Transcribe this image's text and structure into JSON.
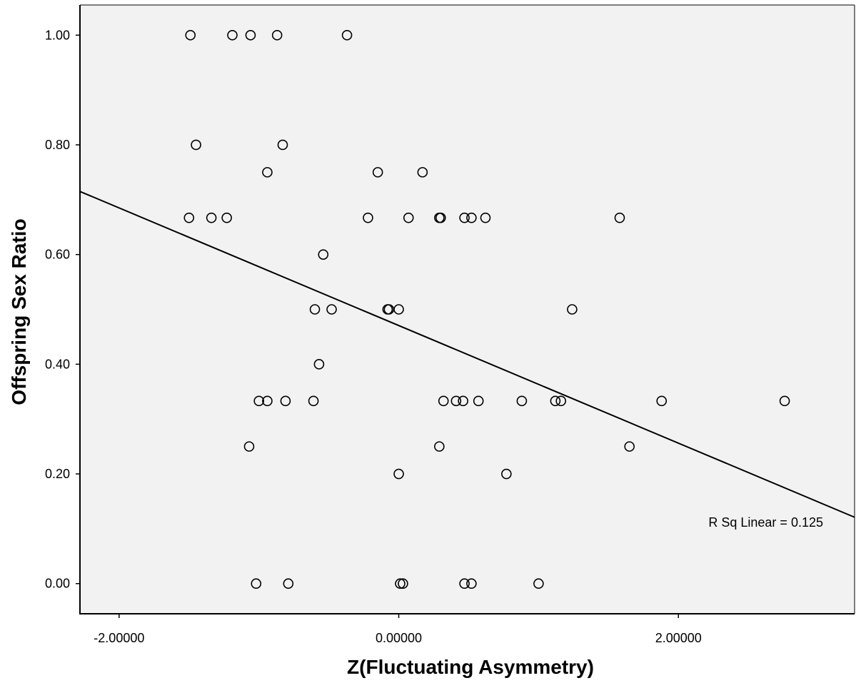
{
  "chart_data": {
    "type": "scatter",
    "title": "",
    "xlabel": "Z(Fluctuating Asymmetry)",
    "ylabel": "Offspring Sex Ratio",
    "xlim": [
      -2.28,
      3.26
    ],
    "ylim": [
      -0.055,
      1.055
    ],
    "x_ticks": [
      -2.0,
      0.0,
      2.0
    ],
    "x_tick_labels": [
      "-2.00000",
      "0.00000",
      "2.00000"
    ],
    "y_ticks": [
      0.0,
      0.2,
      0.4,
      0.6,
      0.8,
      1.0
    ],
    "y_tick_labels": [
      "0.00",
      "0.20",
      "0.40",
      "0.60",
      "0.80",
      "1.00"
    ],
    "grid": false,
    "background": "#f2f2f2",
    "marker": "open-circle",
    "points": [
      {
        "x": -1.49,
        "y": 1.0
      },
      {
        "x": -1.19,
        "y": 1.0
      },
      {
        "x": -1.06,
        "y": 1.0
      },
      {
        "x": -0.87,
        "y": 1.0
      },
      {
        "x": -0.37,
        "y": 1.0
      },
      {
        "x": -1.45,
        "y": 0.8
      },
      {
        "x": -0.83,
        "y": 0.8
      },
      {
        "x": -0.94,
        "y": 0.75
      },
      {
        "x": -0.15,
        "y": 0.75
      },
      {
        "x": 0.17,
        "y": 0.75
      },
      {
        "x": -1.5,
        "y": 0.667
      },
      {
        "x": -1.34,
        "y": 0.667
      },
      {
        "x": -1.23,
        "y": 0.667
      },
      {
        "x": -0.22,
        "y": 0.667
      },
      {
        "x": 0.07,
        "y": 0.667
      },
      {
        "x": 0.29,
        "y": 0.667
      },
      {
        "x": 0.3,
        "y": 0.667
      },
      {
        "x": 0.47,
        "y": 0.667
      },
      {
        "x": 0.52,
        "y": 0.667
      },
      {
        "x": 0.62,
        "y": 0.667
      },
      {
        "x": 1.58,
        "y": 0.667
      },
      {
        "x": -0.54,
        "y": 0.6
      },
      {
        "x": -0.6,
        "y": 0.5
      },
      {
        "x": -0.48,
        "y": 0.5
      },
      {
        "x": -0.08,
        "y": 0.5
      },
      {
        "x": -0.07,
        "y": 0.5
      },
      {
        "x": 0.0,
        "y": 0.5
      },
      {
        "x": 1.24,
        "y": 0.5
      },
      {
        "x": -0.57,
        "y": 0.4
      },
      {
        "x": -1.0,
        "y": 0.333
      },
      {
        "x": -0.94,
        "y": 0.333
      },
      {
        "x": -0.81,
        "y": 0.333
      },
      {
        "x": -0.61,
        "y": 0.333
      },
      {
        "x": 0.32,
        "y": 0.333
      },
      {
        "x": 0.41,
        "y": 0.333
      },
      {
        "x": 0.46,
        "y": 0.333
      },
      {
        "x": 0.57,
        "y": 0.333
      },
      {
        "x": 0.88,
        "y": 0.333
      },
      {
        "x": 1.12,
        "y": 0.333
      },
      {
        "x": 1.16,
        "y": 0.333
      },
      {
        "x": 1.88,
        "y": 0.333
      },
      {
        "x": 2.76,
        "y": 0.333
      },
      {
        "x": -1.07,
        "y": 0.25
      },
      {
        "x": 0.29,
        "y": 0.25
      },
      {
        "x": 1.65,
        "y": 0.25
      },
      {
        "x": 0.0,
        "y": 0.2
      },
      {
        "x": 0.77,
        "y": 0.2
      },
      {
        "x": -1.02,
        "y": 0.0
      },
      {
        "x": -0.79,
        "y": 0.0
      },
      {
        "x": 0.01,
        "y": 0.0
      },
      {
        "x": 0.03,
        "y": 0.0
      },
      {
        "x": 0.47,
        "y": 0.0
      },
      {
        "x": 0.52,
        "y": 0.0
      },
      {
        "x": 1.0,
        "y": 0.0
      }
    ],
    "fit_line": {
      "type": "linear",
      "x": [
        -2.28,
        3.26
      ],
      "y": [
        0.715,
        0.121
      ]
    },
    "annotation": "R Sq Linear = 0.125"
  }
}
